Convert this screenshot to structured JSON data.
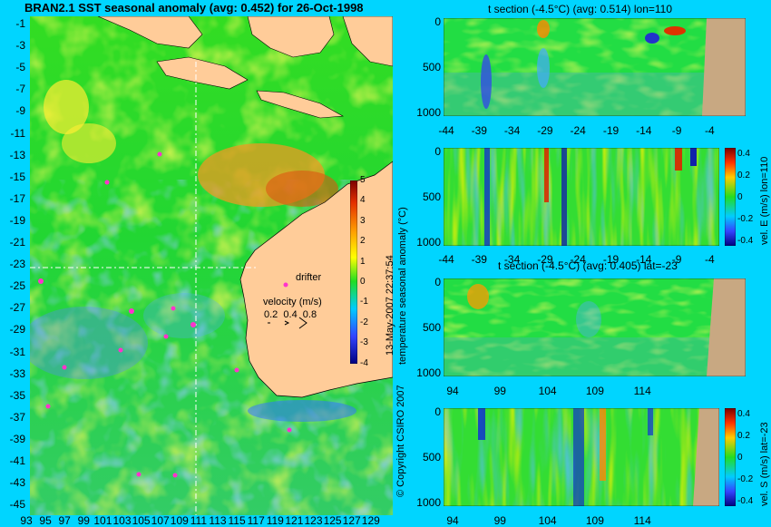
{
  "map": {
    "title": "BRAN2.1 SST seasonal anomaly (avg: 0.452) for 26-Oct-1998",
    "lat_ticks": [
      "-1",
      "-3",
      "-5",
      "-7",
      "-9",
      "-11",
      "-13",
      "-15",
      "-17",
      "-19",
      "-21",
      "-23",
      "-25",
      "-27",
      "-29",
      "-31",
      "-33",
      "-35",
      "-37",
      "-39",
      "-41",
      "-43",
      "-45"
    ],
    "lon_ticks": [
      "93",
      "95",
      "97",
      "99",
      "101",
      "103",
      "105",
      "107",
      "109",
      "111",
      "113",
      "115",
      "117",
      "119",
      "121",
      "123",
      "125",
      "127",
      "129"
    ],
    "drifter_label": "drifter",
    "velocity_label": "velocity (m/s)",
    "velocity_values": "0.2  0.4  0.8",
    "colorbar_label": "temperature seasonal anomaly (°C)",
    "colorbar_ticks": [
      "5",
      "4",
      "3",
      "2",
      "1",
      "0",
      "-1",
      "-2",
      "-3",
      "-4"
    ]
  },
  "panels": {
    "p1": {
      "title": "t section (-4.5°C) (avg: 0.514) lon=110",
      "y_ticks": [
        "0",
        "500",
        "1000"
      ],
      "x_ticks": [
        "-44",
        "-39",
        "-34",
        "-29",
        "-24",
        "-19",
        "-14",
        "-9",
        "-4"
      ]
    },
    "p2": {
      "y_ticks": [
        "0",
        "500",
        "1000"
      ],
      "x_ticks": [
        "-44",
        "-39",
        "-34",
        "-29",
        "-24",
        "-19",
        "-14",
        "-9",
        "-4"
      ],
      "colorbar_label": "vel. E (m/s) lon=110",
      "colorbar_ticks": [
        "0.4",
        "0.2",
        "0",
        "-0.2",
        "-0.4"
      ]
    },
    "p3": {
      "title": "t section (-4.5°C) (avg: 0.405) lat=-23",
      "y_ticks": [
        "0",
        "500",
        "1000"
      ],
      "x_ticks": [
        "94",
        "99",
        "104",
        "109",
        "114"
      ]
    },
    "p4": {
      "y_ticks": [
        "0",
        "500",
        "1000"
      ],
      "x_ticks": [
        "94",
        "99",
        "104",
        "109",
        "114"
      ],
      "colorbar_label": "vel. S (m/s) lat=-23",
      "colorbar_ticks": [
        "0.4",
        "0.2",
        "0",
        "-0.2",
        "-0.4"
      ]
    }
  },
  "side_text": {
    "timestamp": "13-May-2007 22:37:54",
    "copyright": "© Copyright CSIRO 2007"
  },
  "colors": {
    "background": "#00d5ff",
    "land": "#ffcc99",
    "ocean_green": "#22dd22",
    "section_land": "#c8a882",
    "drifter": "#ff33cc"
  }
}
